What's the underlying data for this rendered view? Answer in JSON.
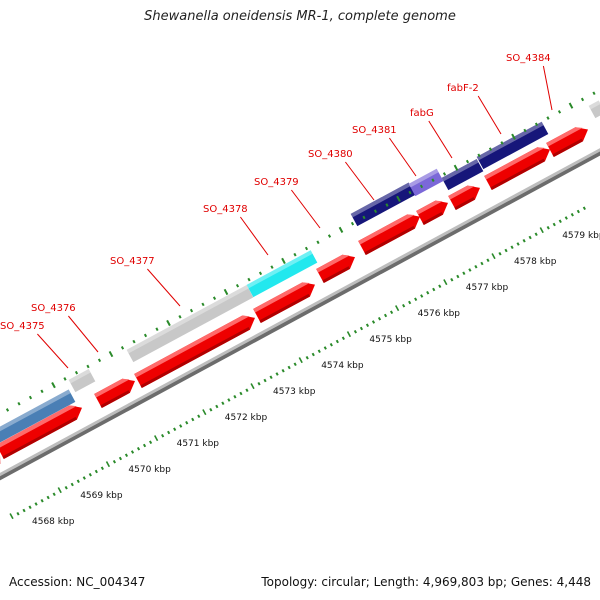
{
  "title": "Shewanella oneidensis MR-1, complete genome",
  "footer": {
    "accession": "Accession: NC_004347",
    "stats": "Topology: circular; Length: 4,969,803 bp; Genes: 4,448"
  },
  "colors": {
    "cds": "#ee0000",
    "backbone": "#9a9a9a",
    "gene_label": "#e00000",
    "tick": "#2a8a2a",
    "feature_gray": "#c8c8c8",
    "feature_blue": "#4a7fb5",
    "feature_cyan": "#22e8ee",
    "feature_navy": "#16167a",
    "feature_purple": "#7b68d8"
  },
  "gene_labels": [
    {
      "id": "SO_4375",
      "text": "SO_4375"
    },
    {
      "id": "SO_4376",
      "text": "SO_4376"
    },
    {
      "id": "SO_4377",
      "text": "SO_4377"
    },
    {
      "id": "SO_4378",
      "text": "SO_4378"
    },
    {
      "id": "SO_4379",
      "text": "SO_4379"
    },
    {
      "id": "SO_4380",
      "text": "SO_4380"
    },
    {
      "id": "SO_4381",
      "text": "SO_4381"
    },
    {
      "id": "fabG",
      "text": "fabG"
    },
    {
      "id": "fabF-2",
      "text": "fabF-2"
    },
    {
      "id": "SO_4384",
      "text": "SO_4384"
    }
  ],
  "kbp_ticks": [
    "4568 kbp",
    "4569 kbp",
    "4570 kbp",
    "4571 kbp",
    "4572 kbp",
    "4573 kbp",
    "4574 kbp",
    "4575 kbp",
    "4576 kbp",
    "4577 kbp",
    "4578 kbp",
    "4579 kbp"
  ]
}
